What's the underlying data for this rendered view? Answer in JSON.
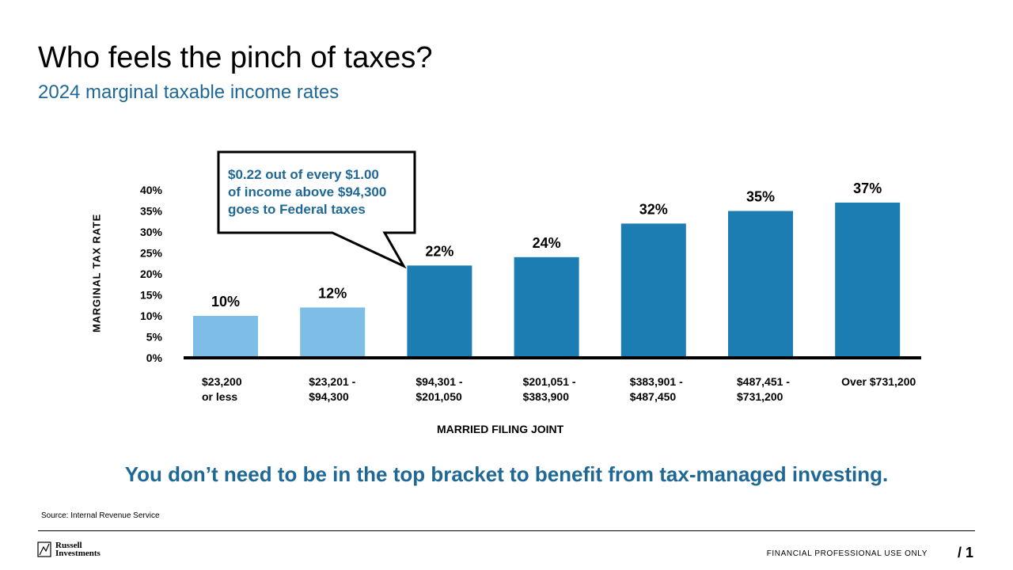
{
  "header": {
    "title": "Who feels the pinch of taxes?",
    "subtitle": "2024 marginal taxable income rates"
  },
  "callout": {
    "line1": "$0.22 out of every $1.00",
    "line2": "of income above $94,300",
    "line3": "goes to Federal taxes"
  },
  "tagline": "You don’t need to be in the top bracket to benefit from tax-managed investing.",
  "source": "Source: Internal Revenue Service",
  "footer": {
    "logo_line1": "Russell",
    "logo_line2": "Investments",
    "note": "FINANCIAL PROFESSIONAL USE ONLY",
    "page": "/ 1"
  },
  "chart_data": {
    "type": "bar",
    "xlabel": "MARRIED FILING JOINT",
    "ylabel": "MARGINAL TAX RATE",
    "ylim": [
      0,
      40
    ],
    "yticks": [
      0,
      5,
      10,
      15,
      20,
      25,
      30,
      35,
      40
    ],
    "ytick_labels": [
      "0%",
      "5%",
      "10%",
      "15%",
      "20%",
      "25%",
      "30%",
      "35%",
      "40%"
    ],
    "grid": false,
    "categories": [
      [
        "$23,200",
        "or less"
      ],
      [
        "$23,201 -",
        "$94,300"
      ],
      [
        "$94,301 -",
        "$201,050"
      ],
      [
        "$201,051 -",
        "$383,900"
      ],
      [
        "$383,901 -",
        "$487,450"
      ],
      [
        "$487,451 -",
        "$731,200"
      ],
      [
        "Over $731,200"
      ]
    ],
    "values": [
      10,
      12,
      22,
      24,
      32,
      35,
      37
    ],
    "data_labels": [
      "10%",
      "12%",
      "22%",
      "24%",
      "32%",
      "35%",
      "37%"
    ],
    "colors": [
      "#7dbde6",
      "#7dbde6",
      "#1b7db1",
      "#1b7db1",
      "#1b7db1",
      "#1b7db1",
      "#1b7db1"
    ]
  }
}
